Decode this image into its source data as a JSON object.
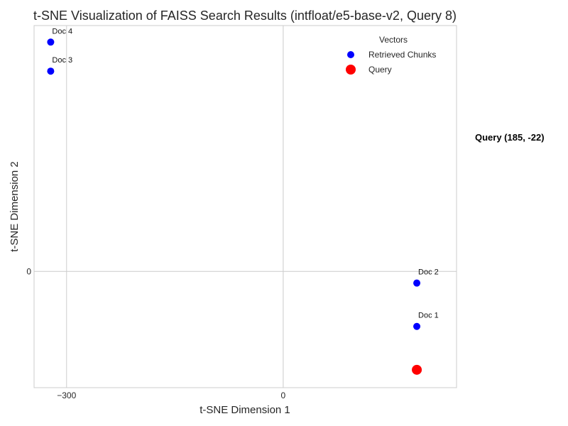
{
  "chart_data": {
    "type": "scatter",
    "title": "t-SNE Visualization of FAISS Search Results (intfloat/e5-base-v2, Query 8)",
    "xlabel": "t-SNE Dimension 1",
    "ylabel": "t-SNE Dimension 2",
    "xlim": [
      -345,
      240
    ],
    "ylim": [
      -26,
      55
    ],
    "xticks": [
      -300,
      0
    ],
    "xtick_labels": [
      "−300",
      "0"
    ],
    "yticks": [
      0
    ],
    "ytick_labels": [
      "0"
    ],
    "grid": true,
    "legend": {
      "title": "Vectors",
      "position": "top-right"
    },
    "series": [
      {
        "name": "Retrieved Chunks",
        "color": "#0000ff",
        "points": [
          {
            "label": "Doc 1",
            "x": 185,
            "y": -12.3
          },
          {
            "label": "Doc 2",
            "x": 185,
            "y": -2.6
          },
          {
            "label": "Doc 3",
            "x": -322,
            "y": 44.8
          },
          {
            "label": "Doc 4",
            "x": -322,
            "y": 51.3
          }
        ]
      },
      {
        "name": "Query",
        "color": "#ff0000",
        "points": [
          {
            "label": "",
            "x": 185,
            "y": -22
          }
        ]
      }
    ],
    "annotations": [
      {
        "text": "Query (185, -22)"
      }
    ]
  }
}
